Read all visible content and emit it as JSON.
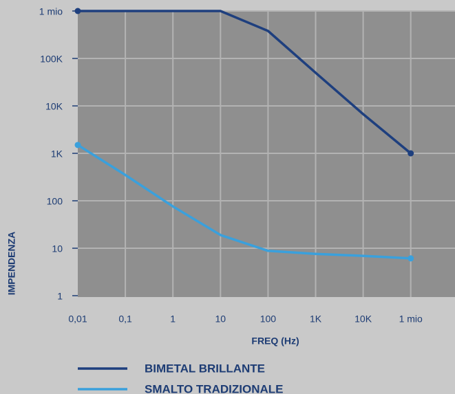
{
  "chart_data": {
    "type": "line",
    "x_label": "FREQ (Hz)",
    "y_label": "IMPENDENZA",
    "categories": [
      "0,01",
      "0,1",
      "1",
      "10",
      "100",
      "1K",
      "10K",
      "1 mio"
    ],
    "series": [
      {
        "name": "BIMETAL BRILLANTE",
        "color": "#1e3f7e",
        "values": [
          1000000,
          1000000,
          1000000,
          1000000,
          380000,
          50000,
          6700,
          1000
        ]
      },
      {
        "name": "SMALTO TRADIZIONALE",
        "color": "#3aa0dc",
        "values": [
          1500,
          350,
          76,
          19,
          8.8,
          7.6,
          6.9,
          6.1
        ]
      }
    ],
    "log_y": true,
    "ylim": [
      1,
      1000000
    ],
    "yticks": [
      1,
      10,
      100,
      {
        "value": 1000,
        "label": "1K"
      },
      {
        "value": 10000,
        "label": "10K"
      },
      {
        "value": 100000,
        "label": "100K"
      },
      {
        "value": 1000000,
        "label": "1 mio"
      }
    ],
    "grid": true,
    "plot_color": "#8f8f8f",
    "grid_color": "#b3b3b3"
  }
}
